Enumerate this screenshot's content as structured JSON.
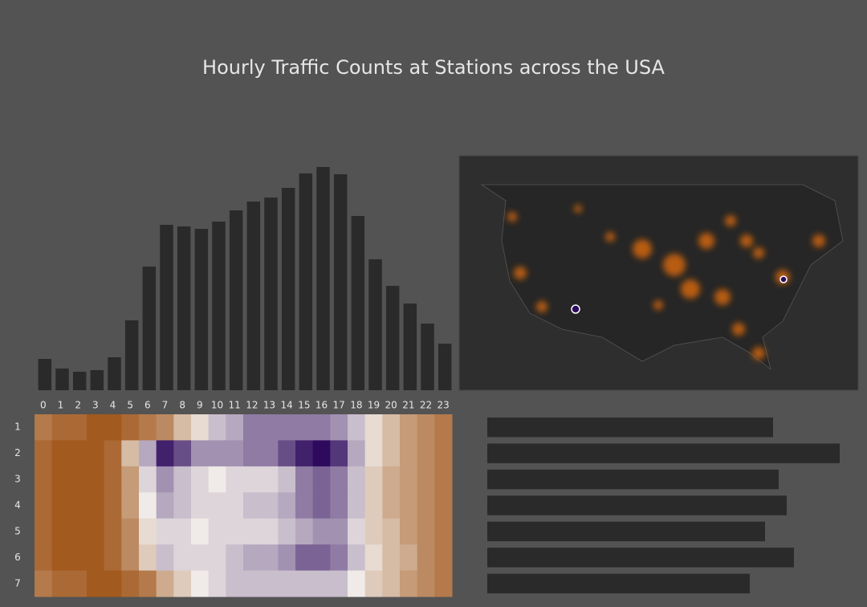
{
  "title": "Hourly Traffic Counts at Stations across the USA",
  "chart_data": [
    {
      "type": "bar",
      "color": "#2a2a2a",
      "values": [
        39,
        27,
        23,
        25,
        41,
        87,
        154,
        206,
        204,
        201,
        210,
        224,
        235,
        240,
        252,
        270,
        278,
        269,
        217,
        163,
        130,
        108,
        83,
        58
      ]
    },
    {
      "type": "heatmap",
      "x": [
        "0",
        "1",
        "2",
        "3",
        "4",
        "5",
        "6",
        "7",
        "8",
        "9",
        "10",
        "11",
        "12",
        "13",
        "14",
        "15",
        "16",
        "17",
        "18",
        "19",
        "20",
        "21",
        "22",
        "23"
      ],
      "y": [
        "1",
        "2",
        "3",
        "4",
        "5",
        "6",
        "7"
      ],
      "zlim": [
        -10,
        10
      ],
      "colors": {
        "low": "#2d0a5e",
        "mid": "#f0ebe8",
        "high": "#9a4a08"
      },
      "values": [
        [
          7,
          8,
          8,
          9,
          9,
          8,
          7,
          6,
          3,
          1,
          -2,
          -3,
          -5,
          -5,
          -5,
          -5,
          -5,
          -4,
          -2,
          1,
          3,
          5,
          6,
          7
        ],
        [
          8,
          9,
          9,
          9,
          8,
          3,
          -3,
          -9,
          -7,
          -4,
          -4,
          -4,
          -5,
          -5,
          -7,
          -9,
          -10,
          -8,
          -3,
          1,
          3,
          5,
          6,
          7
        ],
        [
          8,
          9,
          9,
          9,
          8,
          5,
          -1,
          -4,
          -2,
          -1,
          0,
          -1,
          -1,
          -1,
          -2,
          -5,
          -6,
          -5,
          -2,
          2,
          4,
          5,
          6,
          7
        ],
        [
          8,
          9,
          9,
          9,
          8,
          5,
          0,
          -3,
          -2,
          -1,
          -1,
          -1,
          -2,
          -2,
          -3,
          -5,
          -6,
          -5,
          -2,
          2,
          4,
          5,
          6,
          7
        ],
        [
          8,
          9,
          9,
          9,
          8,
          6,
          1,
          -1,
          -1,
          0,
          -1,
          -1,
          -1,
          -1,
          -2,
          -3,
          -4,
          -4,
          -1,
          2,
          3,
          5,
          6,
          7
        ],
        [
          8,
          9,
          9,
          9,
          8,
          6,
          2,
          -2,
          -1,
          -1,
          -1,
          -2,
          -3,
          -3,
          -4,
          -6,
          -6,
          -5,
          -2,
          1,
          3,
          4,
          6,
          7
        ],
        [
          7,
          8,
          8,
          9,
          9,
          8,
          7,
          4,
          2,
          0,
          -1,
          -2,
          -2,
          -2,
          -2,
          -2,
          -2,
          -2,
          0,
          2,
          3,
          5,
          6,
          7
        ]
      ]
    },
    {
      "type": "hbar",
      "color": "#2a2a2a",
      "values": [
        356,
        439,
        363,
        373,
        346,
        382,
        327
      ]
    }
  ]
}
